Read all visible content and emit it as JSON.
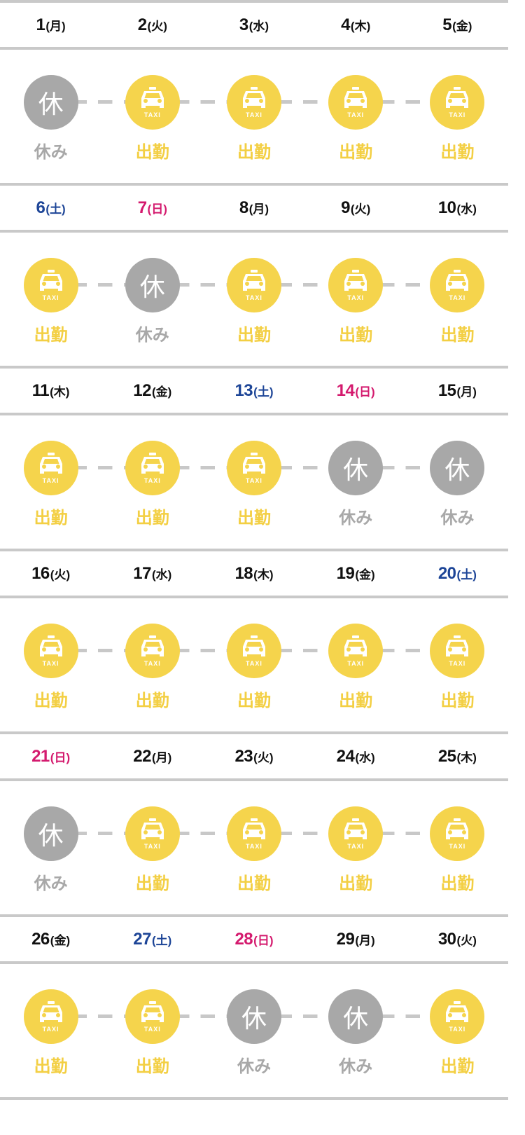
{
  "status_labels": {
    "work": "出勤",
    "off": "休み",
    "off_icon": "休",
    "taxi_icon_text": "TAXI"
  },
  "colors": {
    "work": "#f5d44c",
    "off": "#a8a8a8",
    "saturday": "#1d4597",
    "sunday": "#d41a6e",
    "divider": "#c9c9c9"
  },
  "weeks": [
    {
      "days": [
        {
          "num": "1",
          "weekday": "(月)",
          "status": "off"
        },
        {
          "num": "2",
          "weekday": "(火)",
          "status": "work"
        },
        {
          "num": "3",
          "weekday": "(水)",
          "status": "work"
        },
        {
          "num": "4",
          "weekday": "(木)",
          "status": "work"
        },
        {
          "num": "5",
          "weekday": "(金)",
          "status": "work"
        }
      ]
    },
    {
      "days": [
        {
          "num": "6",
          "weekday": "(土)",
          "status": "work",
          "type": "sat"
        },
        {
          "num": "7",
          "weekday": "(日)",
          "status": "off",
          "type": "sun"
        },
        {
          "num": "8",
          "weekday": "(月)",
          "status": "work"
        },
        {
          "num": "9",
          "weekday": "(火)",
          "status": "work"
        },
        {
          "num": "10",
          "weekday": "(水)",
          "status": "work"
        }
      ]
    },
    {
      "days": [
        {
          "num": "11",
          "weekday": "(木)",
          "status": "work"
        },
        {
          "num": "12",
          "weekday": "(金)",
          "status": "work"
        },
        {
          "num": "13",
          "weekday": "(土)",
          "status": "work",
          "type": "sat"
        },
        {
          "num": "14",
          "weekday": "(日)",
          "status": "off",
          "type": "sun"
        },
        {
          "num": "15",
          "weekday": "(月)",
          "status": "off"
        }
      ]
    },
    {
      "days": [
        {
          "num": "16",
          "weekday": "(火)",
          "status": "work"
        },
        {
          "num": "17",
          "weekday": "(水)",
          "status": "work"
        },
        {
          "num": "18",
          "weekday": "(木)",
          "status": "work"
        },
        {
          "num": "19",
          "weekday": "(金)",
          "status": "work"
        },
        {
          "num": "20",
          "weekday": "(土)",
          "status": "work",
          "type": "sat"
        }
      ]
    },
    {
      "days": [
        {
          "num": "21",
          "weekday": "(日)",
          "status": "off",
          "type": "sun"
        },
        {
          "num": "22",
          "weekday": "(月)",
          "status": "work"
        },
        {
          "num": "23",
          "weekday": "(火)",
          "status": "work"
        },
        {
          "num": "24",
          "weekday": "(水)",
          "status": "work"
        },
        {
          "num": "25",
          "weekday": "(木)",
          "status": "work"
        }
      ]
    },
    {
      "days": [
        {
          "num": "26",
          "weekday": "(金)",
          "status": "work"
        },
        {
          "num": "27",
          "weekday": "(土)",
          "status": "work",
          "type": "sat"
        },
        {
          "num": "28",
          "weekday": "(日)",
          "status": "off",
          "type": "sun"
        },
        {
          "num": "29",
          "weekday": "(月)",
          "status": "off"
        },
        {
          "num": "30",
          "weekday": "(火)",
          "status": "work"
        }
      ]
    }
  ]
}
